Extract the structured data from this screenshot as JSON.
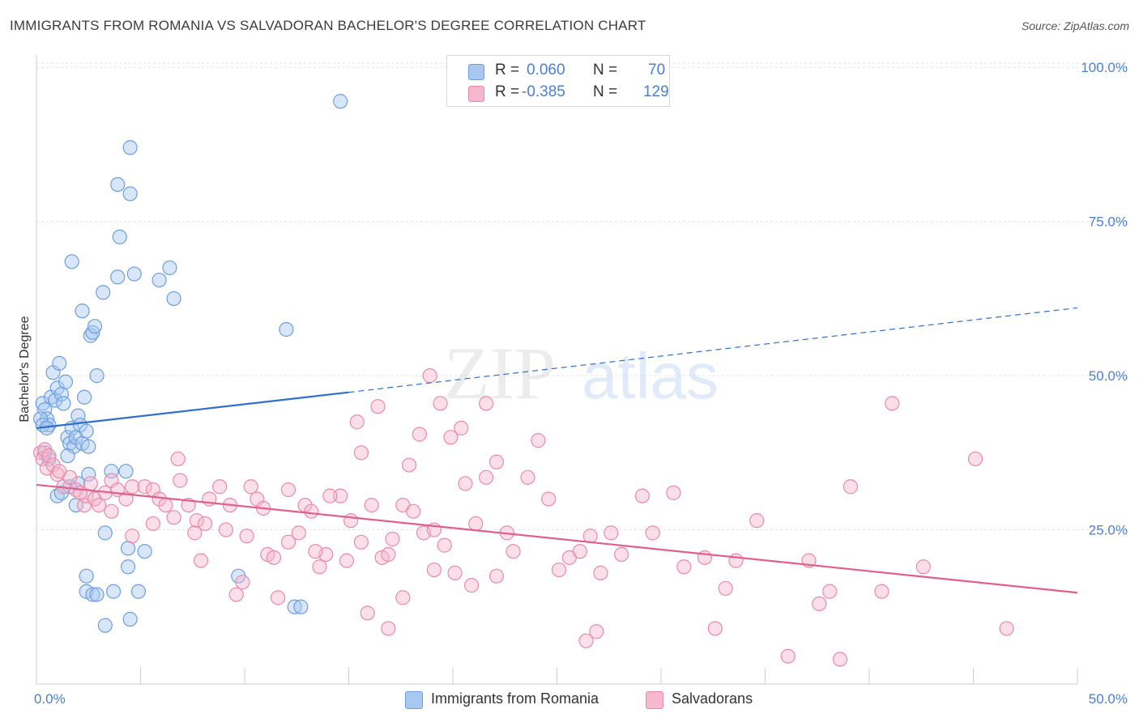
{
  "title": "IMMIGRANTS FROM ROMANIA VS SALVADORAN BACHELOR'S DEGREE CORRELATION CHART",
  "source": "Source: ZipAtlas.com",
  "watermark": {
    "zip": "ZIP",
    "atlas": "atlas"
  },
  "colors": {
    "blue_fill": "#a8c8f0",
    "blue_stroke": "#6b9ee0",
    "blue_line": "#2f6fcf",
    "pink_fill": "#f5b8cc",
    "pink_stroke": "#e88aaa",
    "pink_line": "#e0608a",
    "axis_text": "#4a7fd0",
    "grid": "#e3e3e3"
  },
  "legend": {
    "rows": [
      {
        "r_label": "R =",
        "r_value": "0.060",
        "n_label": "N =",
        "n_value": "70",
        "series": "blue"
      },
      {
        "r_label": "R =",
        "r_value": "-0.385",
        "n_label": "N =",
        "n_value": "129",
        "series": "pink"
      }
    ]
  },
  "bottom_legend": [
    {
      "label": "Immigrants from Romania",
      "series": "blue"
    },
    {
      "label": "Salvadorans",
      "series": "pink"
    }
  ],
  "chart_data": {
    "type": "scatter",
    "title": "IMMIGRANTS FROM ROMANIA VS SALVADORAN BACHELOR'S DEGREE CORRELATION CHART",
    "xlabel": "",
    "ylabel": "Bachelor's Degree",
    "xlim": [
      0,
      50
    ],
    "ylim": [
      0,
      102
    ],
    "x_tick_labels": [
      {
        "value": 0,
        "label": "0.0%"
      },
      {
        "value": 50,
        "label": "50.0%"
      }
    ],
    "y_tick_labels": [
      {
        "value": 25,
        "label": "25.0%"
      },
      {
        "value": 50,
        "label": "50.0%"
      },
      {
        "value": 75,
        "label": "75.0%"
      },
      {
        "value": 100,
        "label": "100.0%"
      }
    ],
    "series": [
      {
        "name": "Immigrants from Romania",
        "color": "blue",
        "trend": {
          "x0": 0,
          "y0": 41.5,
          "x1": 15,
          "y1": 47.3,
          "dash_x1": 50,
          "dash_y1": 61
        },
        "points": [
          [
            0.3,
            45.5
          ],
          [
            0.4,
            44.5
          ],
          [
            0.5,
            43
          ],
          [
            0.6,
            42
          ],
          [
            0.7,
            46.5
          ],
          [
            0.8,
            50.5
          ],
          [
            0.9,
            46
          ],
          [
            1.0,
            48
          ],
          [
            1.1,
            52
          ],
          [
            1.2,
            47
          ],
          [
            1.3,
            45.5
          ],
          [
            1.4,
            49
          ],
          [
            1.5,
            40
          ],
          [
            1.6,
            39
          ],
          [
            1.7,
            41.5
          ],
          [
            1.8,
            38.5
          ],
          [
            1.9,
            40
          ],
          [
            2.0,
            43.5
          ],
          [
            2.1,
            42
          ],
          [
            2.2,
            39
          ],
          [
            2.3,
            46.5
          ],
          [
            2.4,
            41
          ],
          [
            2.5,
            38.5
          ],
          [
            0.2,
            43
          ],
          [
            0.3,
            42
          ],
          [
            0.5,
            41.5
          ],
          [
            0.4,
            37.5
          ],
          [
            0.6,
            36.5
          ],
          [
            1.0,
            30.5
          ],
          [
            1.2,
            31
          ],
          [
            1.6,
            32
          ],
          [
            1.9,
            29
          ],
          [
            2.6,
            56.5
          ],
          [
            2.7,
            57
          ],
          [
            2.8,
            58
          ],
          [
            2.9,
            50
          ],
          [
            2.2,
            60.5
          ],
          [
            3.2,
            63.5
          ],
          [
            1.7,
            68.5
          ],
          [
            3.9,
            66
          ],
          [
            4.7,
            66.5
          ],
          [
            5.9,
            65.5
          ],
          [
            6.4,
            67.5
          ],
          [
            6.6,
            62.5
          ],
          [
            4.0,
            72.5
          ],
          [
            3.9,
            81
          ],
          [
            4.5,
            87
          ],
          [
            4.5,
            79.5
          ],
          [
            12.0,
            57.5
          ],
          [
            14.6,
            94.5
          ],
          [
            3.6,
            34.5
          ],
          [
            4.3,
            34.5
          ],
          [
            2.5,
            34
          ],
          [
            3.3,
            24.5
          ],
          [
            4.4,
            22
          ],
          [
            5.2,
            21.5
          ],
          [
            4.4,
            19
          ],
          [
            2.4,
            17.5
          ],
          [
            2.4,
            15
          ],
          [
            2.7,
            14.5
          ],
          [
            2.9,
            14.5
          ],
          [
            3.7,
            15
          ],
          [
            4.9,
            15
          ],
          [
            3.3,
            9.5
          ],
          [
            4.5,
            10.5
          ],
          [
            9.7,
            17.5
          ],
          [
            12.4,
            12.5
          ],
          [
            12.7,
            12.5
          ],
          [
            2.0,
            32.5
          ],
          [
            1.5,
            37
          ]
        ]
      },
      {
        "name": "Salvadorans",
        "color": "pink",
        "trend": {
          "x0": 0,
          "y0": 32.3,
          "x1": 50,
          "y1": 14.8
        },
        "points": [
          [
            0.2,
            37.5
          ],
          [
            0.3,
            36.5
          ],
          [
            0.4,
            38
          ],
          [
            0.5,
            35
          ],
          [
            0.6,
            37
          ],
          [
            0.8,
            35.5
          ],
          [
            1.0,
            34
          ],
          [
            1.3,
            32
          ],
          [
            1.6,
            33.5
          ],
          [
            1.9,
            31.5
          ],
          [
            2.3,
            29
          ],
          [
            2.4,
            30.5
          ],
          [
            2.6,
            32.5
          ],
          [
            2.8,
            30
          ],
          [
            3.0,
            29
          ],
          [
            3.3,
            31
          ],
          [
            3.6,
            33
          ],
          [
            3.9,
            31.5
          ],
          [
            4.3,
            30
          ],
          [
            4.6,
            32
          ],
          [
            5.2,
            32
          ],
          [
            5.6,
            31.5
          ],
          [
            5.9,
            30
          ],
          [
            6.2,
            29
          ],
          [
            6.8,
            36.5
          ],
          [
            7.3,
            29
          ],
          [
            7.7,
            26.5
          ],
          [
            8.3,
            30
          ],
          [
            8.8,
            32
          ],
          [
            9.3,
            29
          ],
          [
            10.3,
            32
          ],
          [
            10.6,
            30
          ],
          [
            10.9,
            28.5
          ],
          [
            12.1,
            31.5
          ],
          [
            12.9,
            29
          ],
          [
            13.2,
            28
          ],
          [
            14.6,
            30.5
          ],
          [
            15.1,
            26.5
          ],
          [
            15.6,
            23
          ],
          [
            16.1,
            29
          ],
          [
            16.6,
            20.5
          ],
          [
            16.9,
            21
          ],
          [
            17.1,
            23.5
          ],
          [
            17.6,
            29
          ],
          [
            18.1,
            28
          ],
          [
            18.6,
            24.5
          ],
          [
            19.1,
            25
          ],
          [
            19.6,
            22.5
          ],
          [
            20.1,
            18
          ],
          [
            20.6,
            32.5
          ],
          [
            21.1,
            26
          ],
          [
            21.6,
            33.5
          ],
          [
            22.1,
            36
          ],
          [
            22.6,
            24.5
          ],
          [
            22.9,
            21.5
          ],
          [
            23.6,
            33.5
          ],
          [
            24.1,
            39.5
          ],
          [
            24.6,
            30
          ],
          [
            25.6,
            20.5
          ],
          [
            26.1,
            21.5
          ],
          [
            26.6,
            24
          ],
          [
            27.6,
            24.5
          ],
          [
            28.1,
            21
          ],
          [
            29.1,
            30.5
          ],
          [
            31.1,
            19
          ],
          [
            32.1,
            20.5
          ],
          [
            33.1,
            15.5
          ],
          [
            33.6,
            20
          ],
          [
            34.6,
            26.5
          ],
          [
            37.1,
            20
          ],
          [
            38.1,
            15
          ],
          [
            39.1,
            32
          ],
          [
            41.1,
            45.5
          ],
          [
            45.1,
            36.5
          ],
          [
            46.6,
            9
          ],
          [
            38.6,
            4
          ],
          [
            37.6,
            13
          ],
          [
            36.1,
            4.5
          ],
          [
            40.6,
            15
          ],
          [
            42.6,
            19
          ],
          [
            30.6,
            31
          ],
          [
            29.6,
            24.5
          ],
          [
            26.9,
            8.5
          ],
          [
            26.4,
            7
          ],
          [
            32.6,
            9
          ],
          [
            27.1,
            18
          ],
          [
            25.1,
            18.5
          ],
          [
            22.1,
            17.5
          ],
          [
            20.9,
            16
          ],
          [
            19.1,
            18.5
          ],
          [
            18.4,
            40.5
          ],
          [
            19.4,
            45.5
          ],
          [
            18.9,
            50
          ],
          [
            19.9,
            40
          ],
          [
            21.6,
            45.5
          ],
          [
            20.4,
            41.5
          ],
          [
            16.4,
            45
          ],
          [
            15.4,
            42.5
          ],
          [
            17.9,
            35.5
          ],
          [
            15.6,
            37.5
          ],
          [
            14.1,
            30.5
          ],
          [
            13.6,
            19
          ],
          [
            12.1,
            23
          ],
          [
            11.1,
            21
          ],
          [
            10.1,
            24
          ],
          [
            9.1,
            25
          ],
          [
            8.1,
            26
          ],
          [
            7.6,
            24.5
          ],
          [
            6.6,
            27
          ],
          [
            5.6,
            26
          ],
          [
            4.6,
            24
          ],
          [
            3.6,
            28
          ],
          [
            2.1,
            31
          ],
          [
            1.1,
            34.5
          ],
          [
            12.6,
            24.5
          ],
          [
            13.9,
            21
          ],
          [
            14.9,
            20
          ],
          [
            15.9,
            11.5
          ],
          [
            16.9,
            9
          ],
          [
            17.6,
            14
          ],
          [
            11.6,
            14
          ],
          [
            9.6,
            14.5
          ],
          [
            7.9,
            20
          ],
          [
            11.4,
            20.5
          ],
          [
            9.9,
            16.5
          ],
          [
            13.4,
            21.5
          ],
          [
            6.9,
            33
          ]
        ]
      }
    ]
  }
}
